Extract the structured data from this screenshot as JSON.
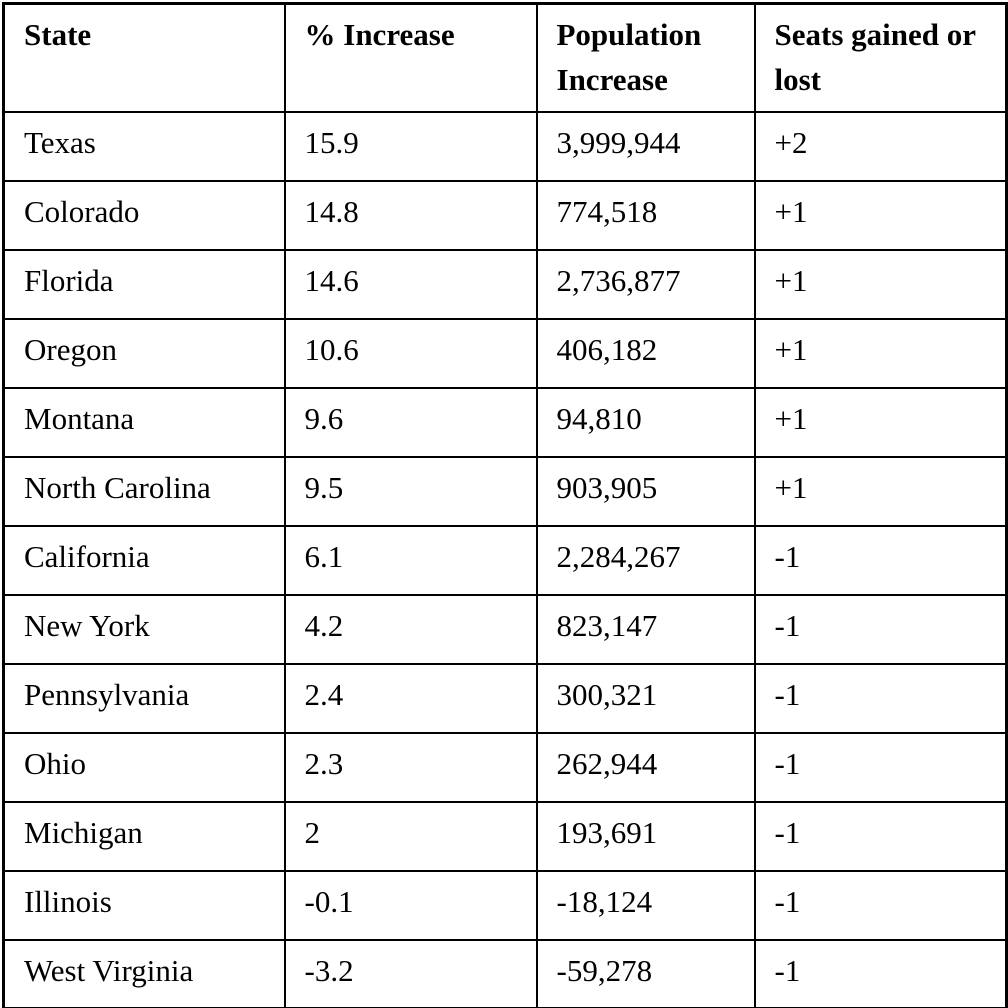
{
  "table": {
    "headers": {
      "state": "State",
      "pct_increase": "% Increase",
      "population_increase": "Population Increase",
      "seats": "Seats gained or lost"
    },
    "rows": [
      {
        "state": "Texas",
        "pct": "15.9",
        "pop": "3,999,944",
        "seats": "+2"
      },
      {
        "state": "Colorado",
        "pct": "14.8",
        "pop": "774,518",
        "seats": "+1"
      },
      {
        "state": "Florida",
        "pct": "14.6",
        "pop": "2,736,877",
        "seats": "+1"
      },
      {
        "state": "Oregon",
        "pct": "10.6",
        "pop": "406,182",
        "seats": "+1"
      },
      {
        "state": "Montana",
        "pct": "9.6",
        "pop": "94,810",
        "seats": "+1"
      },
      {
        "state": "North Carolina",
        "pct": "9.5",
        "pop": "903,905",
        "seats": "+1"
      },
      {
        "state": "California",
        "pct": "6.1",
        "pop": "2,284,267",
        "seats": "-1"
      },
      {
        "state": "New York",
        "pct": "4.2",
        "pop": "823,147",
        "seats": "-1"
      },
      {
        "state": "Pennsylvania",
        "pct": "2.4",
        "pop": "300,321",
        "seats": "-1"
      },
      {
        "state": "Ohio",
        "pct": "2.3",
        "pop": "262,944",
        "seats": "-1"
      },
      {
        "state": "Michigan",
        "pct": "2",
        "pop": "193,691",
        "seats": "-1"
      },
      {
        "state": "Illinois",
        "pct": "-0.1",
        "pop": "-18,124",
        "seats": "-1"
      },
      {
        "state": "West Virginia",
        "pct": "-3.2",
        "pop": "-59,278",
        "seats": "-1"
      }
    ],
    "colors": {
      "border": "#000000",
      "background": "#ffffff",
      "text": "#000000"
    }
  }
}
